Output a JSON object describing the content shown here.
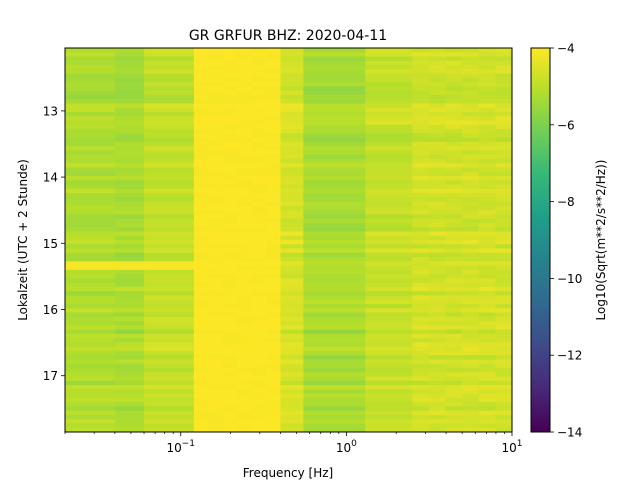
{
  "chart_data": {
    "type": "heatmap",
    "title": "GR GRFUR  BHZ: 2020-04-11",
    "xlabel": "Frequency [Hz]",
    "ylabel": "Lokalzeit (UTC + 2 Stunde)",
    "colorbar_label": "Log10(Sqrt(m**2/s**2/Hz))",
    "x_scale": "log",
    "xlim": [
      0.02,
      10
    ],
    "x_ticks": [
      {
        "value": 0.1,
        "base": "10",
        "exp": "−1"
      },
      {
        "value": 1,
        "base": "10",
        "exp": "0"
      },
      {
        "value": 10,
        "base": "10",
        "exp": "1"
      }
    ],
    "ylim": [
      17.85,
      12.05
    ],
    "y_ticks": [
      {
        "value": 13,
        "label": "13"
      },
      {
        "value": 14,
        "label": "14"
      },
      {
        "value": 15,
        "label": "15"
      },
      {
        "value": 16,
        "label": "16"
      },
      {
        "value": 17,
        "label": "17"
      }
    ],
    "color_range": [
      -14,
      -4
    ],
    "colorbar_ticks": [
      {
        "value": -4,
        "label": "−4"
      },
      {
        "value": -6,
        "label": "−6"
      },
      {
        "value": -8,
        "label": "−8"
      },
      {
        "value": -10,
        "label": "−10"
      },
      {
        "value": -12,
        "label": "−12"
      },
      {
        "value": -14,
        "label": "−14"
      }
    ],
    "colormap": "viridis",
    "frequency_bands": [
      {
        "f_min": 0.02,
        "f_max": 0.04,
        "level": -5.2
      },
      {
        "f_min": 0.04,
        "f_max": 0.06,
        "level": -5.3
      },
      {
        "f_min": 0.06,
        "f_max": 0.12,
        "level": -4.9
      },
      {
        "f_min": 0.12,
        "f_max": 0.4,
        "level": -4.05
      },
      {
        "f_min": 0.4,
        "f_max": 0.55,
        "level": -4.6
      },
      {
        "f_min": 0.55,
        "f_max": 1.3,
        "level": -5.3
      },
      {
        "f_min": 1.3,
        "f_max": 2.5,
        "level": -4.9
      },
      {
        "f_min": 2.5,
        "f_max": 10,
        "level": -4.7
      }
    ],
    "events": [
      {
        "t_start": 15.25,
        "t_end": 15.45,
        "f_max": 0.12,
        "level": -4.1
      }
    ]
  }
}
